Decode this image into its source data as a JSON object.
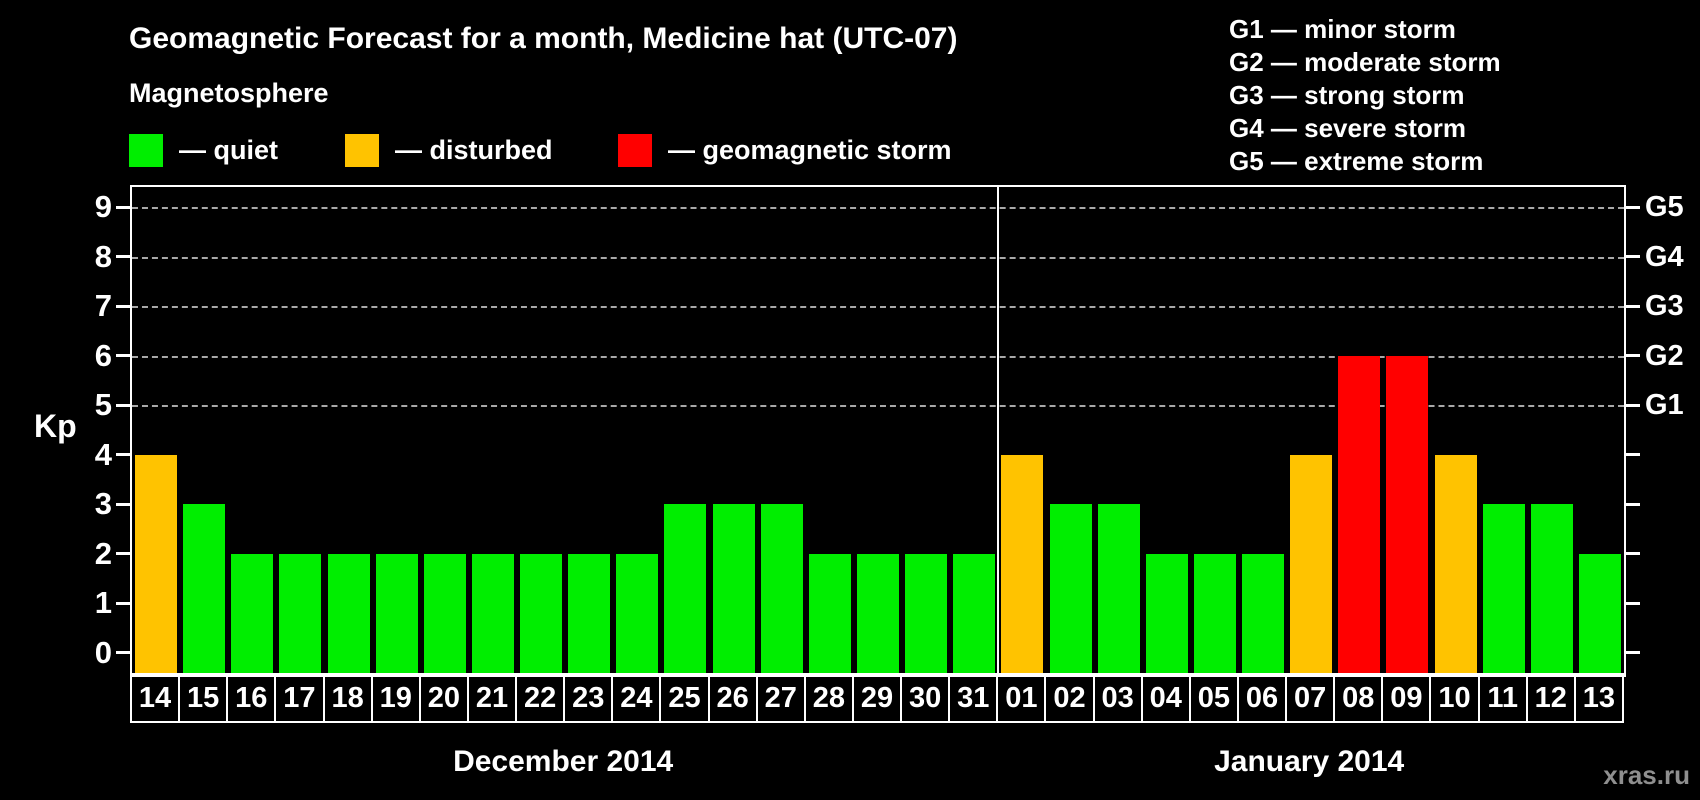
{
  "title": "Geomagnetic Forecast for a month, Medicine hat (UTC-07)",
  "subtitle": "Magnetosphere",
  "legend": {
    "items": [
      {
        "key": "quiet",
        "label": "— quiet",
        "color": "#00ee00"
      },
      {
        "key": "disturbed",
        "label": "— disturbed",
        "color": "#ffc300"
      },
      {
        "key": "storm",
        "label": "— geomagnetic storm",
        "color": "#ff0000"
      }
    ]
  },
  "g_legend": {
    "lines": [
      "G1 — minor storm",
      "G2 — moderate storm",
      "G3 — strong storm",
      "G4 — severe storm",
      "G5 — extreme storm"
    ]
  },
  "axis": {
    "kp_label": "Kp",
    "left_ticks": [
      0,
      1,
      2,
      3,
      4,
      5,
      6,
      7,
      8,
      9
    ],
    "right_g_labels": [
      {
        "kp": 5,
        "label": "G1"
      },
      {
        "kp": 6,
        "label": "G2"
      },
      {
        "kp": 7,
        "label": "G3"
      },
      {
        "kp": 8,
        "label": "G4"
      },
      {
        "kp": 9,
        "label": "G5"
      }
    ],
    "gridlines_kp": [
      5,
      6,
      7,
      8,
      9
    ]
  },
  "watermark": "xras.ru",
  "chart_data": {
    "type": "bar",
    "title": "Geomagnetic Forecast for a month, Medicine hat (UTC-07)",
    "xlabel": "",
    "ylabel": "Kp",
    "ylim": [
      0,
      9
    ],
    "grid": "dashed horizontal lines at Kp 5-9 (G1-G5)",
    "legend_position": "top-left",
    "color_rule": "kp<=3 quiet green, kp=4..5 disturbed orange, kp>=6 storm red",
    "months": [
      {
        "name": "December 2014",
        "days": [
          {
            "label": "14",
            "kp": 4,
            "status": "disturbed"
          },
          {
            "label": "15",
            "kp": 3,
            "status": "quiet"
          },
          {
            "label": "16",
            "kp": 2,
            "status": "quiet"
          },
          {
            "label": "17",
            "kp": 2,
            "status": "quiet"
          },
          {
            "label": "18",
            "kp": 2,
            "status": "quiet"
          },
          {
            "label": "19",
            "kp": 2,
            "status": "quiet"
          },
          {
            "label": "20",
            "kp": 2,
            "status": "quiet"
          },
          {
            "label": "21",
            "kp": 2,
            "status": "quiet"
          },
          {
            "label": "22",
            "kp": 2,
            "status": "quiet"
          },
          {
            "label": "23",
            "kp": 2,
            "status": "quiet"
          },
          {
            "label": "24",
            "kp": 2,
            "status": "quiet"
          },
          {
            "label": "25",
            "kp": 3,
            "status": "quiet"
          },
          {
            "label": "26",
            "kp": 3,
            "status": "quiet"
          },
          {
            "label": "27",
            "kp": 3,
            "status": "quiet"
          },
          {
            "label": "28",
            "kp": 2,
            "status": "quiet"
          },
          {
            "label": "29",
            "kp": 2,
            "status": "quiet"
          },
          {
            "label": "30",
            "kp": 2,
            "status": "quiet"
          },
          {
            "label": "31",
            "kp": 2,
            "status": "quiet"
          }
        ]
      },
      {
        "name": "January 2014",
        "days": [
          {
            "label": "01",
            "kp": 4,
            "status": "disturbed"
          },
          {
            "label": "02",
            "kp": 3,
            "status": "quiet"
          },
          {
            "label": "03",
            "kp": 3,
            "status": "quiet"
          },
          {
            "label": "04",
            "kp": 2,
            "status": "quiet"
          },
          {
            "label": "05",
            "kp": 2,
            "status": "quiet"
          },
          {
            "label": "06",
            "kp": 2,
            "status": "quiet"
          },
          {
            "label": "07",
            "kp": 4,
            "status": "disturbed"
          },
          {
            "label": "08",
            "kp": 6,
            "status": "storm"
          },
          {
            "label": "09",
            "kp": 6,
            "status": "storm"
          },
          {
            "label": "10",
            "kp": 4,
            "status": "disturbed"
          },
          {
            "label": "11",
            "kp": 3,
            "status": "quiet"
          },
          {
            "label": "12",
            "kp": 3,
            "status": "quiet"
          },
          {
            "label": "13",
            "kp": 2,
            "status": "quiet"
          }
        ]
      }
    ],
    "categories": [
      "14",
      "15",
      "16",
      "17",
      "18",
      "19",
      "20",
      "21",
      "22",
      "23",
      "24",
      "25",
      "26",
      "27",
      "28",
      "29",
      "30",
      "31",
      "01",
      "02",
      "03",
      "04",
      "05",
      "06",
      "07",
      "08",
      "09",
      "10",
      "11",
      "12",
      "13"
    ],
    "values": [
      4,
      3,
      2,
      2,
      2,
      2,
      2,
      2,
      2,
      2,
      2,
      3,
      3,
      3,
      2,
      2,
      2,
      2,
      4,
      3,
      3,
      2,
      2,
      2,
      4,
      6,
      6,
      4,
      3,
      3,
      2
    ]
  }
}
